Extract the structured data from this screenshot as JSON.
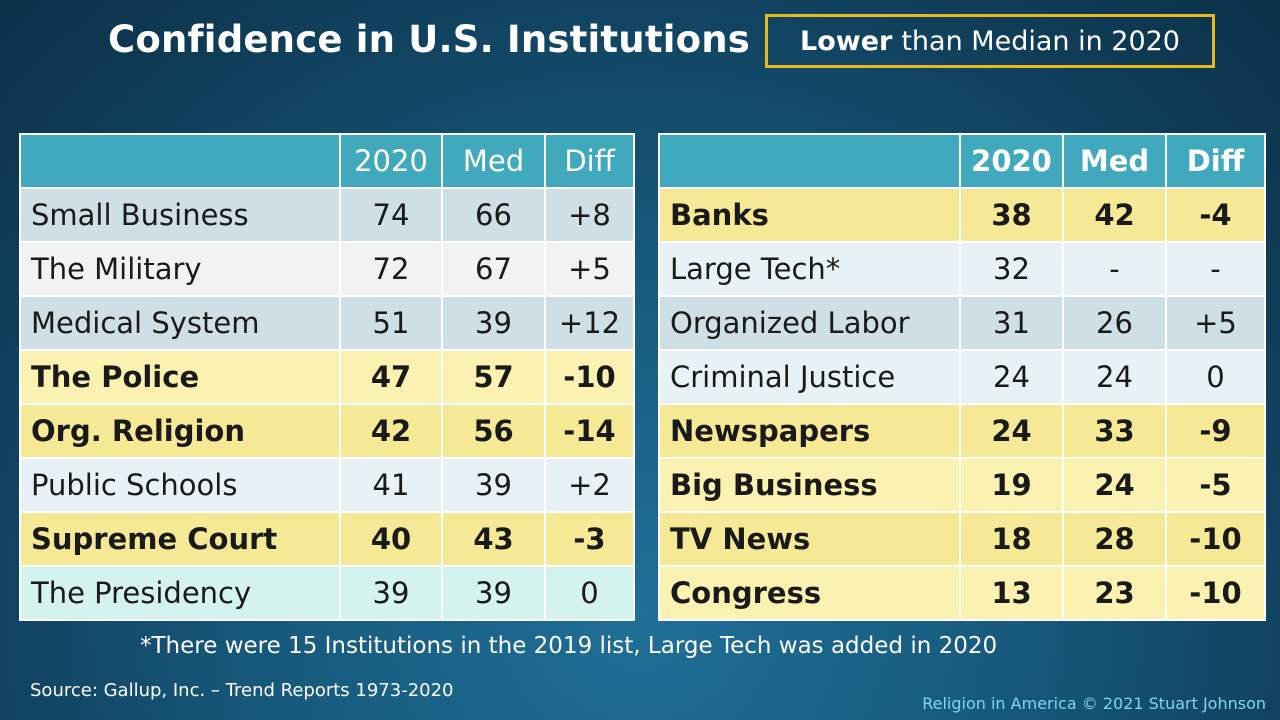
{
  "title": "Confidence in U.S. Institutions",
  "subtitle": {
    "strong": "Lower",
    "rest": "than Median in 2020"
  },
  "tables": {
    "left": {
      "headers": [
        "",
        "2020",
        "Med",
        "Diff"
      ],
      "rows": [
        {
          "name": "Small Business",
          "y2020": "74",
          "med": "66",
          "diff": "+8",
          "lower": false
        },
        {
          "name": "The Military",
          "y2020": "72",
          "med": "67",
          "diff": "+5",
          "lower": false
        },
        {
          "name": "Medical System",
          "y2020": "51",
          "med": "39",
          "diff": "+12",
          "lower": false
        },
        {
          "name": "The Police",
          "y2020": "47",
          "med": "57",
          "diff": "-10",
          "lower": true
        },
        {
          "name": "Org. Religion",
          "y2020": "42",
          "med": "56",
          "diff": "-14",
          "lower": true
        },
        {
          "name": "Public Schools",
          "y2020": "41",
          "med": "39",
          "diff": "+2",
          "lower": false
        },
        {
          "name": "Supreme Court",
          "y2020": "40",
          "med": "43",
          "diff": "-3",
          "lower": true
        },
        {
          "name": "The Presidency",
          "y2020": "39",
          "med": "39",
          "diff": "0",
          "lower": false
        }
      ]
    },
    "right": {
      "headers": [
        "",
        "2020",
        "Med",
        "Diff"
      ],
      "rows": [
        {
          "name": "Banks",
          "y2020": "38",
          "med": "42",
          "diff": "-4",
          "lower": true
        },
        {
          "name": "Large Tech*",
          "y2020": "32",
          "med": "-",
          "diff": "-",
          "lower": false
        },
        {
          "name": "Organized Labor",
          "y2020": "31",
          "med": "26",
          "diff": "+5",
          "lower": false
        },
        {
          "name": "Criminal Justice",
          "y2020": "24",
          "med": "24",
          "diff": "0",
          "lower": false
        },
        {
          "name": "Newspapers",
          "y2020": "24",
          "med": "33",
          "diff": "-9",
          "lower": true
        },
        {
          "name": "Big Business",
          "y2020": "19",
          "med": "24",
          "diff": "-5",
          "lower": true
        },
        {
          "name": "TV News",
          "y2020": "18",
          "med": "28",
          "diff": "-10",
          "lower": true
        },
        {
          "name": "Congress",
          "y2020": "13",
          "med": "23",
          "diff": "-10",
          "lower": true
        }
      ]
    }
  },
  "chart_data": {
    "type": "table",
    "title": "Confidence in U.S. Institutions",
    "columns": [
      "",
      "2020",
      "Med",
      "Diff"
    ],
    "rows": [
      [
        "Small Business",
        74,
        66,
        "+8"
      ],
      [
        "The Military",
        72,
        67,
        "+5"
      ],
      [
        "Medical System",
        51,
        39,
        "+12"
      ],
      [
        "The Police",
        47,
        57,
        "-10"
      ],
      [
        "Org. Religion",
        42,
        56,
        "-14"
      ],
      [
        "Public Schools",
        41,
        39,
        "+2"
      ],
      [
        "Supreme Court",
        40,
        43,
        "-3"
      ],
      [
        "The Presidency",
        39,
        39,
        "0"
      ],
      [
        "Banks",
        38,
        42,
        "-4"
      ],
      [
        "Large Tech*",
        32,
        "-",
        "-"
      ],
      [
        "Organized Labor",
        31,
        26,
        "+5"
      ],
      [
        "Criminal Justice",
        24,
        24,
        "0"
      ],
      [
        "Newspapers",
        24,
        33,
        "-9"
      ],
      [
        "Big Business",
        19,
        24,
        "-5"
      ],
      [
        "TV News",
        18,
        28,
        "-10"
      ],
      [
        "Congress",
        13,
        23,
        "-10"
      ]
    ]
  },
  "footnote": "*There were 15 Institutions in the 2019 list, Large Tech was added in 2020",
  "source": "Source: Gallup, Inc. – Trend Reports 1973-2020",
  "credit": "Religion in America © 2021 Stuart Johnson",
  "colors": {
    "header": "#40a9bd",
    "highlight": "#f6e996",
    "box_border": "#e8b81c",
    "credit_text": "#7fd6ee"
  }
}
